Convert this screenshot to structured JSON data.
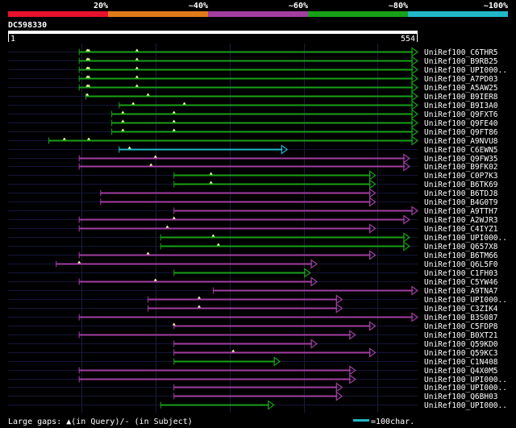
{
  "query_id": "DC598330",
  "query_length_start": "1",
  "query_length_end": "554",
  "query_length": 554,
  "identity_scale": {
    "labels": [
      "20%",
      "~40%",
      "~60%",
      "~80%",
      "~100%"
    ],
    "colors": [
      "#e8112d",
      "#e07b1a",
      "#a23ea2",
      "#18a018",
      "#20b8c8"
    ]
  },
  "legend": {
    "large_gaps_text": "Large gaps: ▲(in Query)/- (in Subject)",
    "scale_text": "=100char.",
    "scale_chars": 100
  },
  "hits": [
    {
      "name": "UniRef100_C6THR5",
      "color": "green",
      "start": 97,
      "end": 554,
      "dash": 0,
      "gaps": [
        [
          108,
          135
        ],
        [
          110,
          131
        ],
        [
          175,
          110
        ]
      ]
    },
    {
      "name": "UniRef100_B9RB25",
      "color": "green",
      "start": 97,
      "end": 554,
      "dash": 0,
      "gaps": [
        [
          108,
          117
        ],
        [
          110,
          131
        ],
        [
          175,
          171
        ]
      ]
    },
    {
      "name": "UniRef100_UPI000..",
      "color": "green",
      "start": 97,
      "end": 554,
      "dash": 0,
      "gaps": [
        [
          108,
          117
        ],
        [
          110,
          131
        ],
        [
          175,
          171
        ]
      ]
    },
    {
      "name": "UniRef100_A7PD03",
      "color": "green",
      "start": 97,
      "end": 554,
      "dash": 0,
      "gaps": [
        [
          108,
          117
        ],
        [
          110,
          131
        ],
        [
          175,
          171
        ]
      ]
    },
    {
      "name": "UniRef100_A5AW25",
      "color": "green",
      "start": 97,
      "end": 554,
      "dash": 0,
      "gaps": [
        [
          108,
          117
        ],
        [
          110,
          131
        ],
        [
          175,
          171
        ]
      ]
    },
    {
      "name": "UniRef100_B9IER8",
      "color": "green",
      "start": 106,
      "end": 554,
      "dash": 0,
      "gaps": [
        [
          108,
          117
        ],
        [
          190,
          189
        ]
      ]
    },
    {
      "name": "UniRef100_B9I3A0",
      "color": "green",
      "start": 151,
      "end": 554,
      "dash": 0,
      "gaps": [
        [
          170,
          140
        ],
        [
          239,
          211
        ]
      ]
    },
    {
      "name": "UniRef100_Q9FXT6",
      "color": "green",
      "start": 141,
      "end": 554,
      "dash": 0,
      "gaps": [
        [
          156,
          164
        ],
        [
          225,
          236
        ]
      ]
    },
    {
      "name": "UniRef100_Q9FE40",
      "color": "green",
      "start": 141,
      "end": 554,
      "dash": 0,
      "gaps": [
        [
          156,
          164
        ],
        [
          225,
          236
        ]
      ]
    },
    {
      "name": "UniRef100_Q9FT86",
      "color": "green",
      "start": 141,
      "end": 554,
      "dash": 0,
      "gaps": [
        [
          156,
          164
        ],
        [
          225,
          236
        ]
      ]
    },
    {
      "name": "UniRef100_A9NVU8",
      "color": "green",
      "start": 56,
      "end": 554,
      "dash": 0,
      "gaps": [
        [
          77,
          164
        ],
        [
          110,
          136
        ]
      ]
    },
    {
      "name": "UniRef100_C6EWN5",
      "color": "cyan",
      "start": 151,
      "end": 378,
      "dash": 0,
      "gaps": [
        [
          165,
          97
        ]
      ]
    },
    {
      "name": "UniRef100_Q9FW35",
      "color": "purple",
      "start": 97,
      "end": 543,
      "dash": 0,
      "gaps": [
        [
          200,
          111
        ]
      ]
    },
    {
      "name": "UniRef100_B9FK02",
      "color": "purple",
      "start": 97,
      "end": 543,
      "dash": 0,
      "gaps": [
        [
          194,
          111
        ]
      ]
    },
    {
      "name": "UniRef100_C0P7K3",
      "color": "green",
      "start": 225,
      "end": 497,
      "dash": 0,
      "gaps": [
        [
          275,
          105
        ]
      ]
    },
    {
      "name": "UniRef100_B6TK69",
      "color": "green",
      "start": 225,
      "end": 497,
      "dash": 0,
      "gaps": [
        [
          275,
          105
        ]
      ]
    },
    {
      "name": "UniRef100_B6TDJ8",
      "color": "purple",
      "start": 126,
      "end": 497,
      "dash": 0,
      "gaps": []
    },
    {
      "name": "UniRef100_B4G0T9",
      "color": "purple",
      "start": 126,
      "end": 497,
      "dash": 0,
      "gaps": []
    },
    {
      "name": "UniRef100_A9TTH7",
      "color": "purple",
      "start": 225,
      "end": 554,
      "dash": 0,
      "gaps": []
    },
    {
      "name": "UniRef100_A2WJR3",
      "color": "purple",
      "start": 97,
      "end": 543,
      "dash": 0,
      "gaps": [
        [
          225,
          100
        ]
      ]
    },
    {
      "name": "UniRef100_C4IYZ1",
      "color": "purple",
      "start": 97,
      "end": 497,
      "dash": 0,
      "gaps": [
        [
          216,
          120
        ]
      ]
    },
    {
      "name": "UniRef100_UPI000..",
      "color": "green",
      "start": 207,
      "end": 543,
      "dash": 0,
      "gaps": [
        [
          278,
          120
        ]
      ]
    },
    {
      "name": "UniRef100_Q657X8",
      "color": "green",
      "start": 207,
      "end": 543,
      "dash": 0,
      "gaps": [
        [
          285,
          120
        ]
      ]
    },
    {
      "name": "UniRef100_B6TM66",
      "color": "purple",
      "start": 97,
      "end": 497,
      "dash": 0,
      "gaps": [
        [
          190,
          111
        ]
      ]
    },
    {
      "name": "UniRef100_Q6L5F0",
      "color": "purple",
      "start": 66,
      "end": 418,
      "dash": 0,
      "gaps": [
        [
          97,
          210
        ]
      ]
    },
    {
      "name": "UniRef100_C1FH03",
      "color": "green",
      "start": 225,
      "end": 409,
      "dash": 0,
      "gaps": []
    },
    {
      "name": "UniRef100_C5YW46",
      "color": "purple",
      "start": 97,
      "end": 418,
      "dash": 0,
      "gaps": [
        [
          200,
          215
        ]
      ]
    },
    {
      "name": "UniRef100_A9TNA7",
      "color": "purple",
      "start": 278,
      "end": 554,
      "dash": 0,
      "gaps": []
    },
    {
      "name": "UniRef100_UPI000..",
      "color": "purple",
      "start": 190,
      "end": 452,
      "dash": 0,
      "gaps": [
        [
          259,
          100
        ]
      ]
    },
    {
      "name": "UniRef100_C3ZIK4",
      "color": "purple",
      "start": 190,
      "end": 452,
      "dash": 0,
      "gaps": [
        [
          259,
          100
        ]
      ]
    },
    {
      "name": "UniRef100_B3S087",
      "color": "purple",
      "start": 97,
      "end": 554,
      "dash": 0,
      "gaps": []
    },
    {
      "name": "UniRef100_C5FDP8",
      "color": "purple",
      "start": 225,
      "end": 497,
      "dash": 0,
      "gaps": [
        [
          225,
          100
        ]
      ]
    },
    {
      "name": "UniRef100_B0XT21",
      "color": "purple",
      "start": 97,
      "end": 470,
      "dash": 0,
      "gaps": []
    },
    {
      "name": "UniRef100_Q59KD0",
      "color": "purple",
      "start": 225,
      "end": 418,
      "dash": 0,
      "gaps": []
    },
    {
      "name": "UniRef100_Q59KC3",
      "color": "purple",
      "start": 225,
      "end": 497,
      "dash": 0,
      "gaps": [
        [
          305,
          100
        ]
      ]
    },
    {
      "name": "UniRef100_C1N408",
      "color": "green",
      "start": 225,
      "end": 368,
      "dash": 0,
      "gaps": []
    },
    {
      "name": "UniRef100_Q4X0M5",
      "color": "purple",
      "start": 97,
      "end": 470,
      "dash": 0,
      "gaps": []
    },
    {
      "name": "UniRef100_UPI000..",
      "color": "purple",
      "start": 97,
      "end": 470,
      "dash": 0,
      "gaps": []
    },
    {
      "name": "UniRef100_UPI000..",
      "color": "purple",
      "start": 225,
      "end": 452,
      "dash": 0,
      "gaps": []
    },
    {
      "name": "UniRef100_Q6BH03",
      "color": "purple",
      "start": 225,
      "end": 452,
      "dash": 0,
      "gaps": []
    },
    {
      "name": "UniRef100_UPI000..",
      "color": "green",
      "start": 207,
      "end": 360,
      "dash": 0,
      "gaps": []
    }
  ]
}
